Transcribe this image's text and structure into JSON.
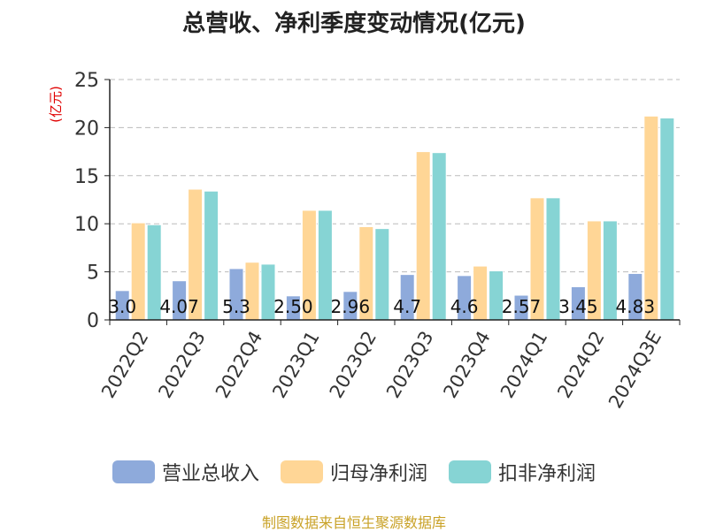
{
  "title": "总营收、净利季度变动情况(亿元)",
  "source": "制图数据来自恒生聚源数据库",
  "colors": {
    "revenue": "#8eaadb",
    "net_profit": "#ffd696",
    "non_recurring": "#86d4d4",
    "ylabel": "#e00000",
    "grid": "#bbbbbb",
    "axis": "#222222"
  },
  "chart_data": {
    "type": "bar",
    "title": "总营收、净利季度变动情况(亿元)",
    "ylabel": "(亿元)",
    "xlabel": "",
    "ylim": [
      0,
      25
    ],
    "yticks": [
      0,
      5,
      10,
      15,
      20,
      25
    ],
    "grid": true,
    "legend_position": "bottom",
    "categories": [
      "2022Q2",
      "2022Q3",
      "2022Q4",
      "2023Q1",
      "2023Q2",
      "2023Q3",
      "2023Q4",
      "2024Q1",
      "2024Q2",
      "2024Q3E"
    ],
    "series": [
      {
        "name": "营业总收入",
        "key": "revenue",
        "values": [
          3.05,
          4.07,
          5.34,
          2.5,
          2.96,
          4.72,
          4.61,
          2.57,
          3.45,
          4.83
        ],
        "labels": [
          "3.0",
          "4.07",
          "5.3",
          "2.50",
          "2.96",
          "4.7",
          "4.6",
          "2.57",
          "3.45",
          "4.83"
        ]
      },
      {
        "name": "归母净利润",
        "key": "net_profit",
        "values": [
          10.1,
          13.6,
          6.0,
          11.4,
          9.7,
          17.5,
          5.6,
          12.7,
          10.3,
          21.2
        ]
      },
      {
        "name": "扣非净利润",
        "key": "non_recurring",
        "values": [
          9.9,
          13.4,
          5.8,
          11.4,
          9.5,
          17.4,
          5.1,
          12.7,
          10.3,
          21.0
        ]
      }
    ]
  }
}
